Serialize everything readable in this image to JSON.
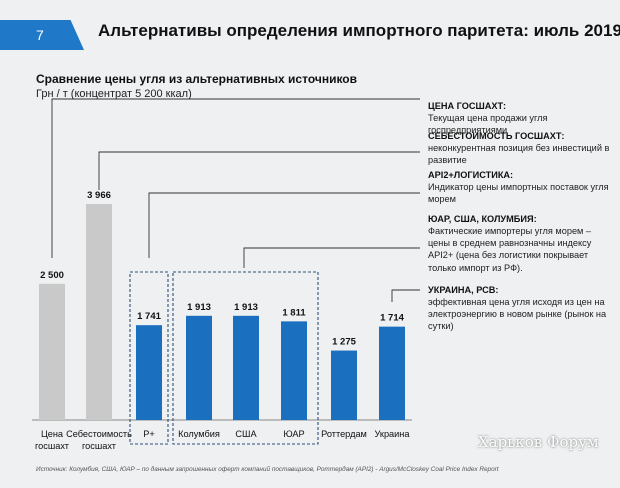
{
  "slide_number": "7",
  "title": "Альтернативы определения импортного паритета: июль 2019",
  "subtitle": "Сравнение цены угля из альтернативных источников",
  "unit_label": "Грн / т (концентрат 5 200 ккал)",
  "chart_data": {
    "type": "bar",
    "categories": [
      "Цена госшахт",
      "Себестоимость госшахт",
      "Р+",
      "Колумбия",
      "США",
      "ЮАР",
      "Роттердам",
      "Украина"
    ],
    "values": [
      2500,
      3966,
      1741,
      1913,
      1913,
      1811,
      1275,
      1714
    ],
    "value_labels": [
      "2 500",
      "3 966",
      "1 741",
      "1 913",
      "1 913",
      "1 811",
      "1 275",
      "1 714"
    ],
    "category_labels": [
      [
        "Цена",
        "госшахт"
      ],
      [
        "Себестоимость",
        "госшахт"
      ],
      [
        "Р+"
      ],
      [
        "Колумбия"
      ],
      [
        "США"
      ],
      [
        "ЮАР"
      ],
      [
        "Роттердам"
      ],
      [
        "Украина"
      ]
    ],
    "colors": [
      "#c9c9c9",
      "#c9c9c9",
      "#1a6fbf",
      "#1a6fbf",
      "#1a6fbf",
      "#1a6fbf",
      "#1a6fbf",
      "#1a6fbf"
    ],
    "ylim": [
      0,
      4500
    ]
  },
  "annotations": [
    {
      "title": "ЦЕНА ГОСШАХТ:",
      "text": "Текущая цена продажи угля госпредприятиями"
    },
    {
      "title": "СЕБЕСТОИМОСТЬ ГОСШАХТ:",
      "text": "неконкурентная позиция без инвестиций в развитие"
    },
    {
      "title": "API2+ЛОГИСТИКА:",
      "text": "Индикатор цены импортных поставок угля морем"
    },
    {
      "title": "ЮАР, США, КОЛУМБИЯ:",
      "text": "Фактические импортеры угля морем – цены в среднем равнозначны индексу API2+ (цена без логистики покрывает только импорт из РФ)."
    },
    {
      "title": "УКРАИНА, РСВ:",
      "text": "эффективная цена угля исходя из цен на электроэнергию в новом рынке (рынок на сутки)"
    }
  ],
  "source": "Источник: Колумбия, США, ЮАР – по данным запрошенных оферт компаний поставщиков, Роттердам (API2) - Argus/McCloskey Coal Price Index Report",
  "watermark": "Харьков Форум",
  "accent_color": "#1f78c8"
}
